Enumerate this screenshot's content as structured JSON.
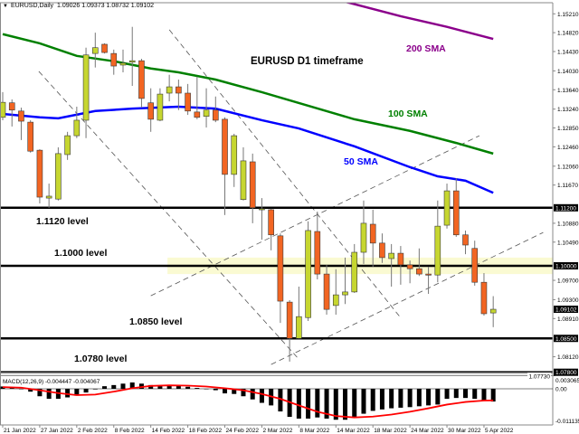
{
  "header": {
    "symbol": "EURUSD,Daily",
    "ohlc": "1.09026 1.09373 1.08732 1.09102"
  },
  "colors": {
    "bull": "#c6d630",
    "bear": "#f26522",
    "candle_border": "#3a3a3a",
    "sma50": "#0000ff",
    "sma100": "#008000",
    "sma200": "#8b008b",
    "signal": "#ff0000",
    "zone": "#fafad2"
  },
  "chart_data": {
    "type": "candlestick",
    "title": "EURUSD D1 timeframe",
    "ylim": [
      1.0773,
      1.1577
    ],
    "grid": false,
    "y_tick_labels": [
      "1.15210",
      "1.14820",
      "1.14430",
      "1.14030",
      "1.13640",
      "1.13240",
      "1.12850",
      "1.12460",
      "1.12060",
      "1.11670",
      "1.10880",
      "1.10490",
      "1.09700",
      "1.09300",
      "1.08910",
      "1.08120",
      "1.07730"
    ],
    "y_highlight_labels": [
      "1.11200",
      "1.10000",
      "1.09102",
      "1.08500",
      "1.07800"
    ],
    "x_tick_labels": [
      {
        "bar": 0,
        "label": "21 Jan 2022"
      },
      {
        "bar": 4,
        "label": "27 Jan 2022"
      },
      {
        "bar": 8,
        "label": "2 Feb 2022"
      },
      {
        "bar": 12,
        "label": "8 Feb 2022"
      },
      {
        "bar": 16,
        "label": "14 Feb 2022"
      },
      {
        "bar": 20,
        "label": "18 Feb 2022"
      },
      {
        "bar": 24,
        "label": "24 Feb 2022"
      },
      {
        "bar": 28,
        "label": "2 Mar 2022"
      },
      {
        "bar": 32,
        "label": "8 Mar 2022"
      },
      {
        "bar": 36,
        "label": "14 Mar 2022"
      },
      {
        "bar": 40,
        "label": "18 Mar 2022"
      },
      {
        "bar": 44,
        "label": "24 Mar 2022"
      },
      {
        "bar": 48,
        "label": "30 Mar 2022"
      },
      {
        "bar": 52,
        "label": "5 Apr 2022"
      }
    ],
    "candles_ohlc": [
      [
        1.1307,
        1.1359,
        1.1301,
        1.1338
      ],
      [
        1.1337,
        1.1344,
        1.1288,
        1.1322
      ],
      [
        1.132,
        1.1327,
        1.126,
        1.1299
      ],
      [
        1.1297,
        1.1301,
        1.1234,
        1.1237
      ],
      [
        1.1239,
        1.1241,
        1.1129,
        1.1142
      ],
      [
        1.114,
        1.117,
        1.112,
        1.1144
      ],
      [
        1.1138,
        1.1245,
        1.1135,
        1.1232
      ],
      [
        1.123,
        1.1277,
        1.1219,
        1.1269
      ],
      [
        1.1269,
        1.1329,
        1.1264,
        1.1301
      ],
      [
        1.1301,
        1.1451,
        1.1264,
        1.1436
      ],
      [
        1.1439,
        1.1482,
        1.141,
        1.1451
      ],
      [
        1.1458,
        1.146,
        1.1439,
        1.1441
      ],
      [
        1.1439,
        1.1447,
        1.1395,
        1.1413
      ],
      [
        1.1415,
        1.1447,
        1.14,
        1.1419
      ],
      [
        1.1421,
        1.1494,
        1.1372,
        1.1424
      ],
      [
        1.1424,
        1.1428,
        1.1327,
        1.1346
      ],
      [
        1.1337,
        1.1367,
        1.1277,
        1.1303
      ],
      [
        1.1301,
        1.1367,
        1.1299,
        1.1355
      ],
      [
        1.1357,
        1.1395,
        1.134,
        1.137
      ],
      [
        1.137,
        1.1385,
        1.1322,
        1.1357
      ],
      [
        1.1357,
        1.1376,
        1.1312,
        1.132
      ],
      [
        1.1318,
        1.1391,
        1.1303,
        1.1307
      ],
      [
        1.1309,
        1.1367,
        1.1286,
        1.1322
      ],
      [
        1.1322,
        1.135,
        1.1297,
        1.1301
      ],
      [
        1.1303,
        1.1307,
        1.1105,
        1.1189
      ],
      [
        1.1189,
        1.1273,
        1.1163,
        1.1269
      ],
      [
        1.1137,
        1.1245,
        1.1135,
        1.1217
      ],
      [
        1.1215,
        1.1232,
        1.1088,
        1.112
      ],
      [
        1.1116,
        1.114,
        1.1054,
        1.1118
      ],
      [
        1.1116,
        1.1118,
        1.1032,
        1.1064
      ],
      [
        1.1062,
        1.1067,
        1.0882,
        1.0927
      ],
      [
        1.0925,
        1.0929,
        1.0802,
        1.085
      ],
      [
        1.085,
        1.0957,
        1.0849,
        1.0895
      ],
      [
        1.0893,
        1.1092,
        1.0886,
        1.1073
      ],
      [
        1.1071,
        1.1112,
        1.0972,
        1.0983
      ],
      [
        1.0983,
        1.1002,
        1.0899,
        1.091
      ],
      [
        1.0918,
        1.0993,
        1.0899,
        1.094
      ],
      [
        1.094,
        1.1017,
        1.0921,
        1.0946
      ],
      [
        1.0946,
        1.1045,
        1.0944,
        1.1028
      ],
      [
        1.1028,
        1.1135,
        1.1004,
        1.1088
      ],
      [
        1.1086,
        1.1116,
        1.0998,
        1.1047
      ],
      [
        1.1047,
        1.1067,
        1.1006,
        1.1017
      ],
      [
        1.1015,
        1.1045,
        1.0957,
        1.1026
      ],
      [
        1.1026,
        1.1041,
        1.0961,
        1.1002
      ],
      [
        1.1002,
        1.1011,
        1.0964,
        1.0994
      ],
      [
        1.0994,
        1.1036,
        1.0979,
        1.0983
      ],
      [
        1.0983,
        1.0998,
        1.0942,
        1.0981
      ],
      [
        1.0981,
        1.1135,
        1.0966,
        1.1082
      ],
      [
        1.1084,
        1.117,
        1.1077,
        1.1155
      ],
      [
        1.1155,
        1.1181,
        1.106,
        1.1064
      ],
      [
        1.1064,
        1.1073,
        1.1024,
        1.1043
      ],
      [
        1.1036,
        1.1052,
        1.0959,
        1.0966
      ],
      [
        1.0966,
        1.0985,
        1.0897,
        1.0901
      ],
      [
        1.09026,
        1.09373,
        1.08732,
        1.09102
      ]
    ],
    "moving_averages": [
      {
        "name": "50 SMA",
        "color": "#0000ff",
        "points": [
          [
            0,
            1.1314
          ],
          [
            4,
            1.1307
          ],
          [
            6,
            1.1305
          ],
          [
            10,
            1.132
          ],
          [
            14,
            1.1325
          ],
          [
            19,
            1.1329
          ],
          [
            23,
            1.1325
          ],
          [
            28,
            1.1301
          ],
          [
            32,
            1.1284
          ],
          [
            38,
            1.1247
          ],
          [
            44,
            1.1204
          ],
          [
            47,
            1.1185
          ],
          [
            50,
            1.1176
          ],
          [
            53,
            1.1151
          ]
        ]
      },
      {
        "name": "100 SMA",
        "color": "#008000",
        "points": [
          [
            0,
            1.1479
          ],
          [
            4,
            1.146
          ],
          [
            8,
            1.1434
          ],
          [
            12,
            1.1423
          ],
          [
            16,
            1.1408
          ],
          [
            19,
            1.14
          ],
          [
            23,
            1.1385
          ],
          [
            28,
            1.1359
          ],
          [
            38,
            1.1303
          ],
          [
            44,
            1.1279
          ],
          [
            49,
            1.1254
          ],
          [
            53,
            1.1232
          ]
        ]
      },
      {
        "name": "200 SMA",
        "color": "#8b008b",
        "points": [
          [
            37,
            1.1546
          ],
          [
            43,
            1.1516
          ],
          [
            48,
            1.1494
          ],
          [
            53,
            1.1469
          ]
        ]
      }
    ],
    "levels": [
      {
        "price": 1.112,
        "label": "1.1120 level"
      },
      {
        "price": 1.1,
        "label": "1.1000 level"
      },
      {
        "price": 1.085,
        "label": "1.0850 level"
      },
      {
        "price": 1.078,
        "label": "1.0780 level"
      }
    ],
    "zone": {
      "from_bar": 18,
      "price_low": 1.0983,
      "price_high": 1.1017
    },
    "trendlines": [
      [
        [
          3.9,
          1.1402
        ],
        [
          32.0,
          1.0807
        ]
      ],
      [
        [
          18.0,
          1.1488
        ],
        [
          42.9,
          1.0895
        ]
      ],
      [
        [
          16.0,
          1.0938
        ],
        [
          51.5,
          1.1269
        ]
      ],
      [
        [
          29.0,
          1.0796
        ],
        [
          58.4,
          1.1069
        ]
      ]
    ],
    "macd": {
      "label": "MACD(12,26,9) -0.004447 -0.004067",
      "ylim": [
        -0.011135,
        0.003065
      ],
      "y_tick_labels": [
        "0.003065",
        "0.00",
        "-0.011135"
      ],
      "histogram": [
        0.0008,
        0.0003,
        0,
        -0.001,
        -0.0026,
        -0.0035,
        -0.0035,
        -0.003,
        -0.0024,
        -0.0013,
        -0.0002,
        0.0009,
        0.0013,
        0.0018,
        0.0022,
        0.0018,
        0.0013,
        0.001,
        0.0011,
        0.001,
        0.0007,
        0.0003,
        0,
        -0.0005,
        -0.0016,
        -0.0018,
        -0.0026,
        -0.0037,
        -0.0049,
        -0.0058,
        -0.0079,
        -0.0098,
        -0.0104,
        -0.0104,
        -0.01,
        -0.0104,
        -0.0108,
        -0.0108,
        -0.0098,
        -0.0087,
        -0.0077,
        -0.0072,
        -0.0068,
        -0.0066,
        -0.0064,
        -0.0061,
        -0.0058,
        -0.0055,
        -0.0035,
        -0.0032,
        -0.0032,
        -0.0035,
        -0.0042,
        -0.004447
      ],
      "signal": [
        [
          0,
          0.0006
        ],
        [
          2,
          0.0004
        ],
        [
          4,
          -0.0005
        ],
        [
          6,
          -0.0015
        ],
        [
          8,
          -0.0022
        ],
        [
          10,
          -0.002
        ],
        [
          12,
          -0.001
        ],
        [
          14,
          0.0002
        ],
        [
          16,
          0.001
        ],
        [
          18,
          0.0012
        ],
        [
          20,
          0.0011
        ],
        [
          22,
          0.0008
        ],
        [
          24,
          0.0002
        ],
        [
          26,
          -0.0005
        ],
        [
          28,
          -0.0018
        ],
        [
          30,
          -0.0035
        ],
        [
          32,
          -0.0058
        ],
        [
          34,
          -0.008
        ],
        [
          36,
          -0.0095
        ],
        [
          38,
          -0.01
        ],
        [
          40,
          -0.0097
        ],
        [
          42,
          -0.009
        ],
        [
          44,
          -0.008
        ],
        [
          46,
          -0.0068
        ],
        [
          48,
          -0.0055
        ],
        [
          50,
          -0.0046
        ],
        [
          52,
          -0.0041
        ],
        [
          53,
          -0.004067
        ]
      ]
    }
  }
}
